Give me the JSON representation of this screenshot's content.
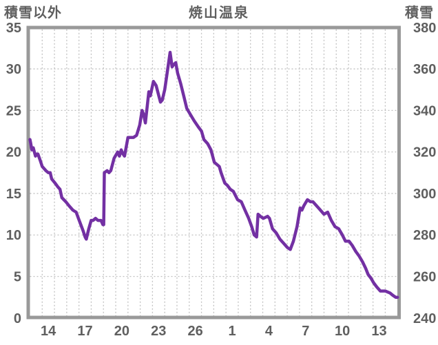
{
  "header": {
    "left_axis_label": "積雪以外",
    "title": "焼山温泉",
    "right_axis_label": "積雪"
  },
  "colors": {
    "line": "#7330a3",
    "border": "#999999",
    "grid": "#c0c0c0",
    "text": "#5f5f5f",
    "background": "#ffffff"
  },
  "chart_data": {
    "type": "line",
    "title": "焼山温泉",
    "grid": true,
    "legend": false,
    "left_axis": {
      "label": "積雪以外",
      "min": 0,
      "max": 35,
      "ticks": [
        35,
        30,
        25,
        20,
        15,
        10,
        5,
        0
      ]
    },
    "right_axis": {
      "label": "積雪",
      "min": 240,
      "max": 380,
      "ticks": [
        380,
        360,
        340,
        320,
        300,
        280,
        260,
        240
      ]
    },
    "x_axis": {
      "unit": "day",
      "span_days": 30,
      "tick_labels": [
        "14",
        "17",
        "20",
        "23",
        "26",
        "1",
        "4",
        "7",
        "10",
        "13"
      ],
      "tick_day_offsets": [
        1.5,
        4.5,
        7.5,
        10.5,
        13.5,
        16.5,
        19.5,
        22.5,
        25.5,
        28.5
      ],
      "gridline_step_days": 1
    },
    "series": [
      {
        "name": "積雪",
        "axis": "right",
        "color": "#7330a3",
        "points": [
          [
            0,
            326
          ],
          [
            0.07,
            324
          ],
          [
            0.15,
            321
          ],
          [
            0.27,
            322
          ],
          [
            0.36,
            320
          ],
          [
            0.45,
            318
          ],
          [
            0.55,
            319
          ],
          [
            0.65,
            319
          ],
          [
            0.83,
            316
          ],
          [
            1,
            313
          ],
          [
            1.3,
            311
          ],
          [
            1.5,
            310
          ],
          [
            1.65,
            310
          ],
          [
            1.77,
            307
          ],
          [
            2.05,
            305
          ],
          [
            2.3,
            303
          ],
          [
            2.45,
            302
          ],
          [
            2.6,
            298
          ],
          [
            2.93,
            296
          ],
          [
            3.2,
            294
          ],
          [
            3.5,
            292
          ],
          [
            3.77,
            291
          ],
          [
            3.96,
            288
          ],
          [
            4.15,
            285
          ],
          [
            4.34,
            282
          ],
          [
            4.5,
            279
          ],
          [
            4.6,
            278
          ],
          [
            4.8,
            283
          ],
          [
            5,
            287
          ],
          [
            5.15,
            287
          ],
          [
            5.35,
            288
          ],
          [
            5.55,
            287
          ],
          [
            5.8,
            287
          ],
          [
            5.95,
            285
          ],
          [
            6.02,
            285
          ],
          [
            6.07,
            310
          ],
          [
            6.3,
            311
          ],
          [
            6.45,
            310
          ],
          [
            6.6,
            311
          ],
          [
            6.87,
            317
          ],
          [
            7.16,
            320
          ],
          [
            7.3,
            318
          ],
          [
            7.45,
            321
          ],
          [
            7.6,
            319
          ],
          [
            7.72,
            318
          ],
          [
            8,
            327
          ],
          [
            8.15,
            327
          ],
          [
            8.45,
            327
          ],
          [
            8.7,
            328
          ],
          [
            8.96,
            333
          ],
          [
            9.15,
            340
          ],
          [
            9.28,
            338
          ],
          [
            9.42,
            334
          ],
          [
            9.7,
            349
          ],
          [
            9.82,
            347
          ],
          [
            10.08,
            354
          ],
          [
            10.3,
            352
          ],
          [
            10.65,
            344
          ],
          [
            10.8,
            345
          ],
          [
            11,
            350
          ],
          [
            11.2,
            358
          ],
          [
            11.44,
            368
          ],
          [
            11.6,
            361
          ],
          [
            11.72,
            362
          ],
          [
            11.9,
            363
          ],
          [
            12.05,
            358
          ],
          [
            12.3,
            353
          ],
          [
            12.55,
            347
          ],
          [
            12.8,
            341
          ],
          [
            13.1,
            338
          ],
          [
            13.4,
            335
          ],
          [
            13.75,
            332
          ],
          [
            14,
            330
          ],
          [
            14.2,
            326
          ],
          [
            14.5,
            324
          ],
          [
            14.77,
            321
          ],
          [
            15.05,
            315
          ],
          [
            15.25,
            314
          ],
          [
            15.45,
            313
          ],
          [
            15.6,
            310
          ],
          [
            15.9,
            305
          ],
          [
            16.1,
            304
          ],
          [
            16.35,
            302
          ],
          [
            16.6,
            301
          ],
          [
            16.95,
            297
          ],
          [
            17.25,
            296
          ],
          [
            17.55,
            292
          ],
          [
            17.85,
            288
          ],
          [
            18.1,
            284
          ],
          [
            18.3,
            280
          ],
          [
            18.5,
            279
          ],
          [
            18.62,
            290
          ],
          [
            18.8,
            289
          ],
          [
            19.05,
            288
          ],
          [
            19.4,
            289
          ],
          [
            19.55,
            288
          ],
          [
            19.8,
            283
          ],
          [
            20.1,
            281
          ],
          [
            20.4,
            278
          ],
          [
            20.7,
            276
          ],
          [
            21,
            274
          ],
          [
            21.25,
            273
          ],
          [
            21.5,
            277
          ],
          [
            21.8,
            284
          ],
          [
            22.05,
            293
          ],
          [
            22.2,
            292
          ],
          [
            22.35,
            294
          ],
          [
            22.65,
            297
          ],
          [
            22.9,
            296
          ],
          [
            23.1,
            296
          ],
          [
            23.55,
            293
          ],
          [
            24,
            290
          ],
          [
            24.3,
            291
          ],
          [
            24.6,
            287
          ],
          [
            24.9,
            284
          ],
          [
            25.2,
            283
          ],
          [
            25.5,
            280
          ],
          [
            25.75,
            277
          ],
          [
            26.05,
            277
          ],
          [
            26.3,
            275
          ],
          [
            26.6,
            272
          ],
          [
            26.85,
            270
          ],
          [
            27.15,
            267
          ],
          [
            27.4,
            264
          ],
          [
            27.6,
            261
          ],
          [
            27.85,
            259
          ],
          [
            28.05,
            257
          ],
          [
            28.3,
            255
          ],
          [
            28.6,
            253
          ],
          [
            29,
            253
          ],
          [
            29.4,
            252
          ],
          [
            29.6,
            251
          ],
          [
            29.85,
            250
          ],
          [
            30,
            250
          ]
        ]
      }
    ]
  }
}
